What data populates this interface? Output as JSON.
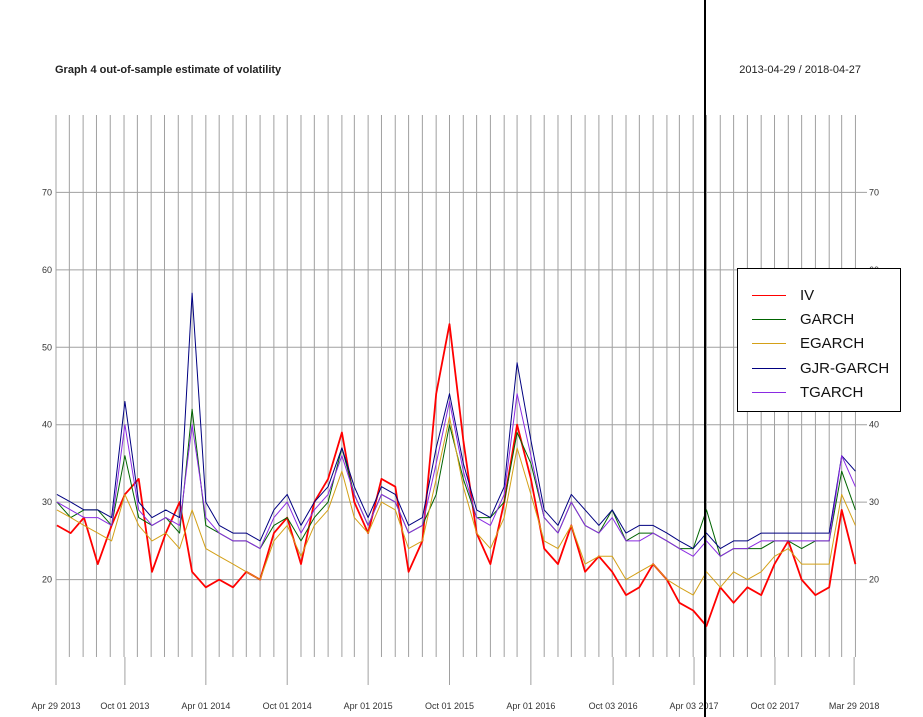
{
  "title": "Graph 4 out-of-sample estimate of volatility",
  "date_range": "2013-04-29 / 2018-04-27",
  "legend": [
    {
      "label": "IV",
      "color": "#ff0000"
    },
    {
      "label": "GARCH",
      "color": "#006400"
    },
    {
      "label": "EGARCH",
      "color": "#d4a017"
    },
    {
      "label": "GJR-GARCH",
      "color": "#000080"
    },
    {
      "label": "TGARCH",
      "color": "#8a2be2"
    }
  ],
  "chart_data": {
    "type": "line",
    "title": "Graph 4 out-of-sample estimate of volatility",
    "xlim": [
      "2013-04-29",
      "2018-04-27"
    ],
    "ylim": [
      10,
      80
    ],
    "yticks": [
      20,
      30,
      40,
      50,
      60,
      70
    ],
    "xtick_labels": [
      "Apr 29 2013",
      "Oct 01 2013",
      "Apr 01 2014",
      "Oct 01 2014",
      "Apr 01 2015",
      "Oct 01 2015",
      "Apr 01 2016",
      "Oct 03 2016",
      "Apr 03 2017",
      "Oct 02 2017",
      "Mar 29 2018"
    ],
    "xtick_dates": [
      "2013-04-29",
      "2013-10-01",
      "2014-04-01",
      "2014-10-01",
      "2015-04-01",
      "2015-10-01",
      "2016-04-01",
      "2016-10-03",
      "2017-04-03",
      "2017-10-02",
      "2018-03-29"
    ],
    "grid": true,
    "legend_position": "right",
    "x": [
      "2013-05-01",
      "2013-06-01",
      "2013-07-01",
      "2013-08-01",
      "2013-09-01",
      "2013-10-01",
      "2013-11-01",
      "2013-12-01",
      "2014-01-01",
      "2014-02-01",
      "2014-03-01",
      "2014-04-01",
      "2014-05-01",
      "2014-06-01",
      "2014-07-01",
      "2014-08-01",
      "2014-09-01",
      "2014-10-01",
      "2014-11-01",
      "2014-12-01",
      "2015-01-01",
      "2015-02-01",
      "2015-03-01",
      "2015-04-01",
      "2015-05-01",
      "2015-06-01",
      "2015-07-01",
      "2015-08-01",
      "2015-09-01",
      "2015-10-01",
      "2015-11-01",
      "2015-12-01",
      "2016-01-01",
      "2016-02-01",
      "2016-03-01",
      "2016-04-01",
      "2016-05-01",
      "2016-06-01",
      "2016-07-01",
      "2016-08-01",
      "2016-09-01",
      "2016-10-01",
      "2016-11-01",
      "2016-12-01",
      "2017-01-01",
      "2017-02-01",
      "2017-03-01",
      "2017-04-01",
      "2017-05-01",
      "2017-06-01",
      "2017-07-01",
      "2017-08-01",
      "2017-09-01",
      "2017-10-01",
      "2017-11-01",
      "2017-12-01",
      "2018-01-01",
      "2018-02-01",
      "2018-03-01",
      "2018-04-01"
    ],
    "series": [
      {
        "name": "IV",
        "color": "#ff0000",
        "values": [
          27,
          26,
          28,
          22,
          27,
          31,
          33,
          21,
          26,
          30,
          21,
          19,
          20,
          19,
          21,
          20,
          26,
          28,
          22,
          30,
          33,
          39,
          30,
          26,
          33,
          32,
          21,
          25,
          44,
          53,
          38,
          26,
          22,
          30,
          40,
          33,
          24,
          22,
          27,
          21,
          23,
          21,
          18,
          19,
          22,
          20,
          17,
          16,
          14,
          19,
          17,
          19,
          18,
          22,
          25,
          20,
          18,
          19,
          29,
          22
        ]
      },
      {
        "name": "GARCH",
        "color": "#006400",
        "values": [
          30,
          28,
          29,
          29,
          27,
          36,
          28,
          27,
          28,
          26,
          42,
          27,
          26,
          25,
          25,
          24,
          27,
          28,
          25,
          28,
          30,
          37,
          31,
          27,
          31,
          30,
          26,
          27,
          31,
          40,
          33,
          28,
          28,
          30,
          39,
          35,
          28,
          26,
          30,
          27,
          26,
          29,
          25,
          26,
          26,
          25,
          24,
          24,
          29,
          23,
          24,
          24,
          24,
          25,
          25,
          24,
          25,
          25,
          34,
          29
        ]
      },
      {
        "name": "EGARCH",
        "color": "#d4a017",
        "values": [
          29,
          28,
          27,
          26,
          25,
          31,
          27,
          25,
          26,
          24,
          29,
          24,
          23,
          22,
          21,
          20,
          25,
          27,
          23,
          27,
          29,
          34,
          28,
          26,
          30,
          29,
          24,
          25,
          33,
          41,
          32,
          26,
          24,
          28,
          37,
          31,
          25,
          24,
          27,
          22,
          23,
          23,
          20,
          21,
          22,
          20,
          19,
          18,
          21,
          19,
          21,
          20,
          21,
          23,
          24,
          22,
          22,
          22,
          31,
          27
        ]
      },
      {
        "name": "GJR-GARCH",
        "color": "#000080",
        "values": [
          31,
          30,
          29,
          29,
          28,
          43,
          30,
          28,
          29,
          28,
          57,
          30,
          27,
          26,
          26,
          25,
          29,
          31,
          27,
          30,
          32,
          37,
          32,
          28,
          32,
          31,
          27,
          28,
          37,
          44,
          35,
          29,
          28,
          32,
          48,
          38,
          29,
          27,
          31,
          29,
          27,
          29,
          26,
          27,
          27,
          26,
          25,
          24,
          26,
          24,
          25,
          25,
          26,
          26,
          26,
          26,
          26,
          26,
          36,
          34
        ]
      },
      {
        "name": "TGARCH",
        "color": "#8a2be2",
        "values": [
          30,
          29,
          28,
          28,
          27,
          40,
          29,
          27,
          28,
          27,
          40,
          28,
          26,
          25,
          25,
          24,
          28,
          30,
          26,
          29,
          31,
          36,
          31,
          27,
          31,
          30,
          26,
          27,
          35,
          43,
          34,
          28,
          27,
          31,
          44,
          36,
          28,
          26,
          30,
          27,
          26,
          28,
          25,
          25,
          26,
          25,
          24,
          23,
          25,
          23,
          24,
          24,
          25,
          25,
          25,
          25,
          25,
          25,
          36,
          32
        ]
      }
    ]
  }
}
